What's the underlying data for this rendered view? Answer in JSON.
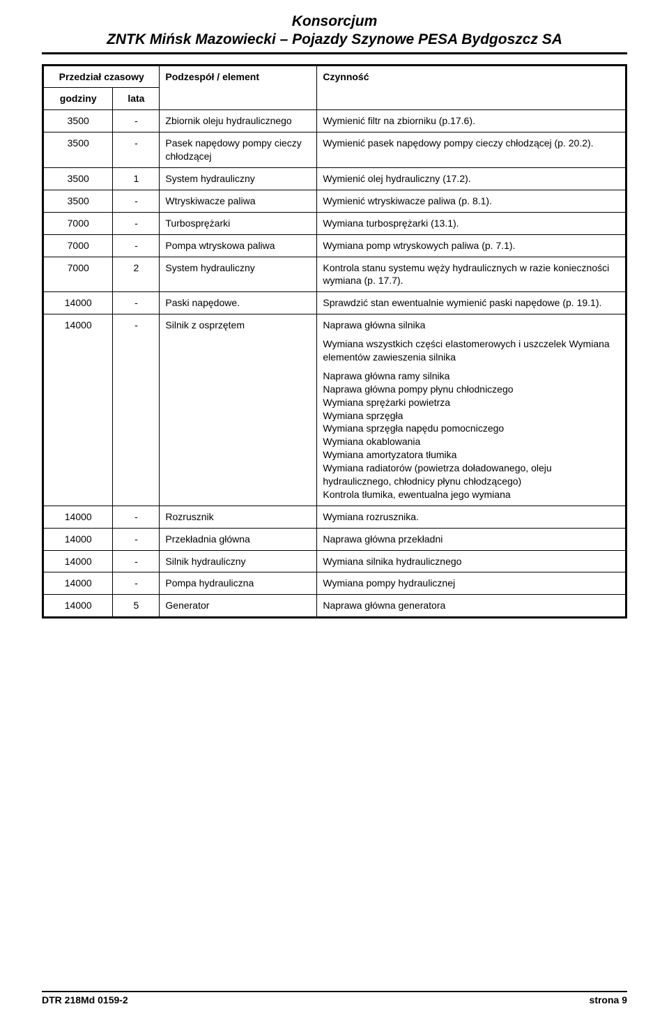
{
  "header": {
    "line1": "Konsorcjum",
    "line2": "ZNTK Mińsk Mazowiecki – Pojazdy Szynowe PESA Bydgoszcz SA"
  },
  "table": {
    "head": {
      "przedzial": "Przedział czasowy",
      "godziny": "godziny",
      "lata": "lata",
      "podzespol": "Podzespół / element",
      "czynnosc": "Czynność"
    },
    "rows": [
      {
        "godziny": "3500",
        "lata": "-",
        "podzespol": "Zbiornik oleju hydraulicznego",
        "czynnosc": [
          "Wymienić filtr na zbiorniku (p.17.6)."
        ]
      },
      {
        "godziny": "3500",
        "lata": "-",
        "podzespol": "Pasek napędowy pompy cieczy chłodzącej",
        "czynnosc": [
          "Wymienić pasek napędowy pompy cieczy chłodzącej (p. 20.2)."
        ]
      },
      {
        "godziny": "3500",
        "lata": "1",
        "podzespol": "System hydrauliczny",
        "czynnosc": [
          "Wymienić olej hydrauliczny (17.2)."
        ]
      },
      {
        "godziny": "3500",
        "lata": "-",
        "podzespol": "Wtryskiwacze paliwa",
        "czynnosc": [
          "Wymienić wtryskiwacze paliwa (p. 8.1)."
        ]
      },
      {
        "godziny": "7000",
        "lata": "-",
        "podzespol": "Turbosprężarki",
        "czynnosc": [
          "Wymiana turbosprężarki (13.1)."
        ]
      },
      {
        "godziny": "7000",
        "lata": "-",
        "podzespol": "Pompa wtryskowa paliwa",
        "czynnosc": [
          "Wymiana pomp wtryskowych paliwa (p. 7.1)."
        ]
      },
      {
        "godziny": "7000",
        "lata": "2",
        "podzespol": "System hydrauliczny",
        "czynnosc": [
          "Kontrola stanu systemu węży hydraulicznych w razie konieczności wymiana (p. 17.7)."
        ]
      },
      {
        "godziny": "14000",
        "lata": "-",
        "podzespol": "Paski napędowe.",
        "czynnosc": [
          "Sprawdzić stan ewentualnie wymienić paski napędowe (p. 19.1)."
        ]
      },
      {
        "godziny": "14000",
        "lata": "-",
        "podzespol": "Silnik z osprzętem",
        "czynnosc": [
          "Naprawa główna silnika",
          "Wymiana wszystkich części elastomerowych i uszczelek Wymiana elementów zawieszenia silnika",
          "Naprawa główna ramy silnika\nNaprawa główna pompy płynu chłodniczego\nWymiana sprężarki powietrza\nWymiana sprzęgła\nWymiana sprzęgła napędu pomocniczego\nWymiana okablowania\nWymiana amortyzatora tłumika\nWymiana radiatorów (powietrza doładowanego, oleju hydraulicznego, chłodnicy płynu chłodzącego)\nKontrola tłumika, ewentualna jego wymiana"
        ]
      },
      {
        "godziny": "14000",
        "lata": "-",
        "podzespol": "Rozrusznik",
        "czynnosc": [
          "Wymiana rozrusznika."
        ]
      },
      {
        "godziny": "14000",
        "lata": "-",
        "podzespol": "Przekładnia główna",
        "czynnosc": [
          "Naprawa główna przekładni"
        ]
      },
      {
        "godziny": "14000",
        "lata": "-",
        "podzespol": "Silnik hydrauliczny",
        "czynnosc": [
          "Wymiana silnika hydraulicznego"
        ]
      },
      {
        "godziny": "14000",
        "lata": "-",
        "podzespol": "Pompa hydrauliczna",
        "czynnosc": [
          "Wymiana pompy hydraulicznej"
        ]
      },
      {
        "godziny": "14000",
        "lata": "5",
        "podzespol": "Generator",
        "czynnosc": [
          "Naprawa główna generatora"
        ]
      }
    ]
  },
  "footer": {
    "left": "DTR 218Md 0159-2",
    "right": "strona 9"
  }
}
